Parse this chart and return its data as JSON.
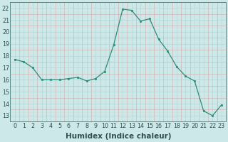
{
  "x": [
    0,
    1,
    2,
    3,
    4,
    5,
    6,
    7,
    8,
    9,
    10,
    11,
    12,
    13,
    14,
    15,
    16,
    17,
    18,
    19,
    20,
    21,
    22,
    23
  ],
  "y": [
    17.7,
    17.5,
    17.0,
    16.0,
    16.0,
    16.0,
    16.1,
    16.2,
    15.9,
    16.1,
    16.7,
    18.9,
    21.9,
    21.8,
    20.9,
    21.1,
    19.4,
    18.4,
    17.1,
    16.3,
    15.9,
    13.4,
    13.0,
    13.9
  ],
  "xlabel": "Humidex (Indice chaleur)",
  "ylim": [
    12.5,
    22.5
  ],
  "xlim": [
    -0.5,
    23.5
  ],
  "yticks": [
    13,
    14,
    15,
    16,
    17,
    18,
    19,
    20,
    21,
    22
  ],
  "xticks": [
    0,
    1,
    2,
    3,
    4,
    5,
    6,
    7,
    8,
    9,
    10,
    11,
    12,
    13,
    14,
    15,
    16,
    17,
    18,
    19,
    20,
    21,
    22,
    23
  ],
  "line_color": "#2e8b7a",
  "bg_color": "#cce8e8",
  "major_grid_color": "#b8d4d4",
  "minor_grid_color": "#d4a8a8",
  "tick_label_fontsize": 5.8,
  "xlabel_fontsize": 7.5
}
